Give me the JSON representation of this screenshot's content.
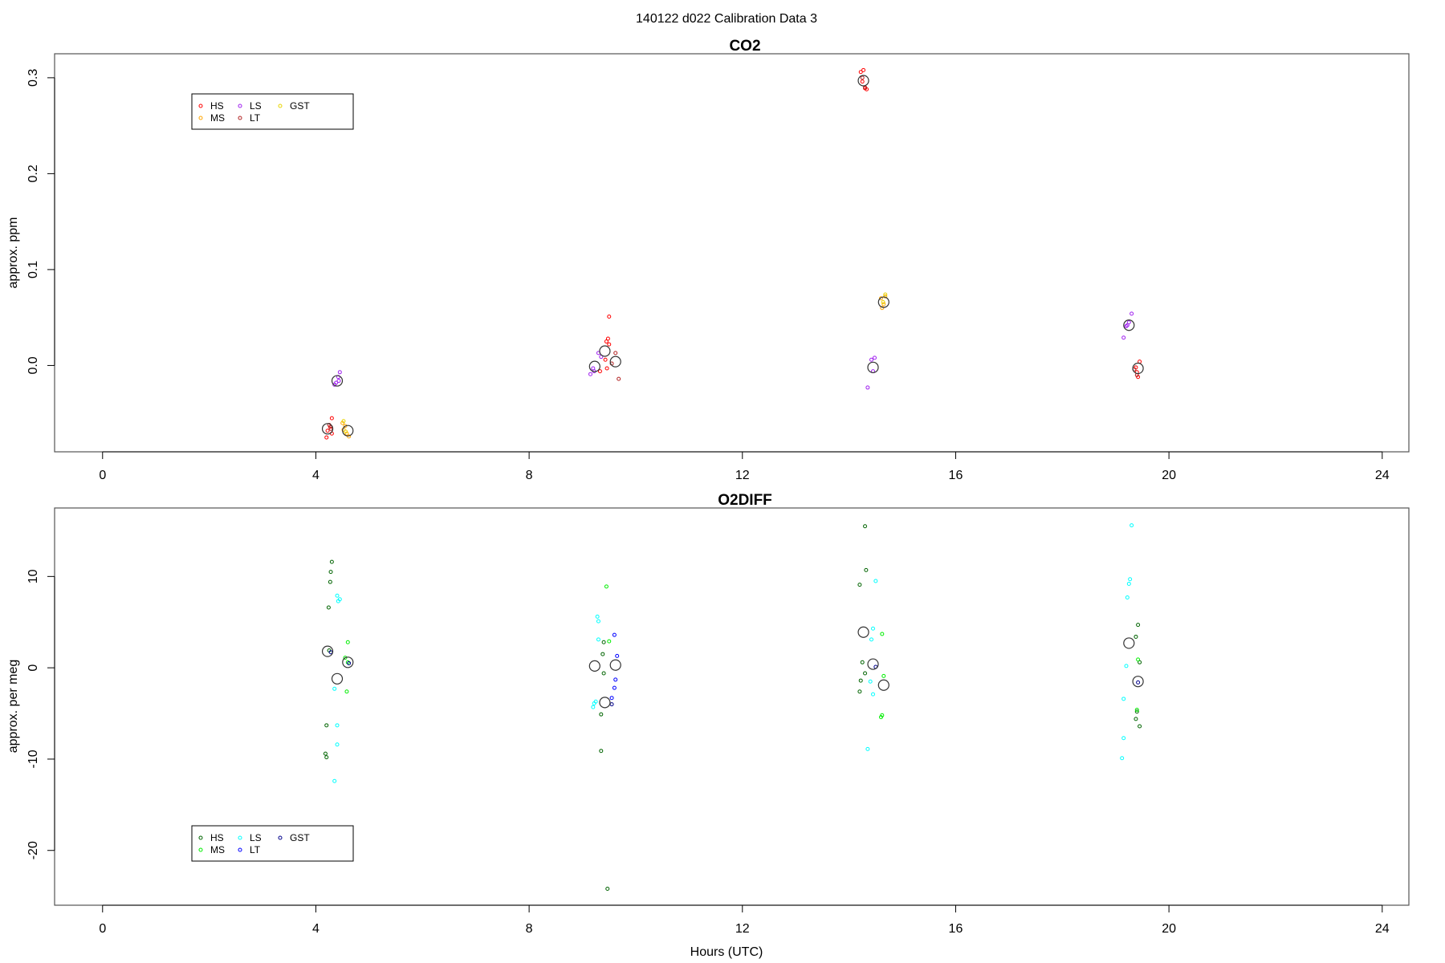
{
  "figure": {
    "title": "140122   d022   Calibration Data 3",
    "xlabel": "Hours (UTC)"
  },
  "chart_data": [
    {
      "type": "scatter",
      "title": "CO2",
      "xlabel": "",
      "ylabel": "approx. ppm",
      "xlim": [
        -0.9,
        24.5
      ],
      "ylim": [
        -0.09,
        0.325
      ],
      "xticks": [
        0,
        4,
        8,
        12,
        16,
        20,
        24
      ],
      "yticks": [
        0.0,
        0.1,
        0.2,
        0.3
      ],
      "ytick_labels": [
        "0.0",
        "0.1",
        "0.2",
        "0.3"
      ],
      "grid": false,
      "legend": {
        "position": "top-left",
        "entries": [
          "HS",
          "MS",
          "LS",
          "LT",
          "GST"
        ]
      },
      "series": [
        {
          "name": "HS",
          "color": "#ff0000",
          "points": [
            [
              4.22,
              -0.068
            ],
            [
              4.27,
              -0.064
            ],
            [
              4.3,
              -0.055
            ],
            [
              4.2,
              -0.075
            ],
            [
              4.3,
              -0.071
            ],
            [
              9.33,
              -0.006
            ],
            [
              9.43,
              0.006
            ],
            [
              9.46,
              -0.003
            ],
            [
              9.48,
              0.028
            ],
            [
              9.5,
              0.022
            ],
            [
              9.45,
              0.025
            ],
            [
              9.5,
              0.051
            ],
            [
              14.22,
              0.306
            ],
            [
              14.27,
              0.308
            ],
            [
              14.3,
              0.289
            ],
            [
              14.33,
              0.288
            ],
            [
              14.25,
              0.296
            ],
            [
              19.38,
              -0.002
            ],
            [
              19.42,
              -0.012
            ],
            [
              19.45,
              0.004
            ],
            [
              19.4,
              -0.007
            ]
          ]
        },
        {
          "name": "MS",
          "color": "#ffa500",
          "points": [
            [
              4.5,
              -0.06
            ],
            [
              4.55,
              -0.063
            ],
            [
              4.58,
              -0.071
            ],
            [
              4.62,
              -0.074
            ],
            [
              4.52,
              -0.067
            ],
            [
              14.6,
              0.07
            ],
            [
              14.65,
              0.064
            ],
            [
              14.62,
              0.06
            ],
            [
              14.68,
              0.072
            ]
          ]
        },
        {
          "name": "LS",
          "color": "#a020f0",
          "points": [
            [
              4.38,
              -0.018
            ],
            [
              4.42,
              -0.012
            ],
            [
              4.45,
              -0.007
            ],
            [
              4.35,
              -0.02
            ],
            [
              4.43,
              -0.016
            ],
            [
              9.15,
              -0.009
            ],
            [
              9.2,
              -0.003
            ],
            [
              9.3,
              0.013
            ],
            [
              9.35,
              0.009
            ],
            [
              9.22,
              -0.006
            ],
            [
              14.35,
              -0.023
            ],
            [
              14.42,
              0.006
            ],
            [
              14.48,
              0.008
            ],
            [
              14.45,
              -0.006
            ],
            [
              19.15,
              0.029
            ],
            [
              19.2,
              0.041
            ],
            [
              19.25,
              0.045
            ],
            [
              19.3,
              0.054
            ],
            [
              19.22,
              0.042
            ]
          ]
        },
        {
          "name": "LT",
          "color": "#b22222",
          "points": [
            [
              4.25,
              -0.062
            ],
            [
              4.28,
              -0.066
            ],
            [
              9.55,
              0.002
            ],
            [
              9.62,
              0.013
            ],
            [
              9.68,
              -0.014
            ],
            [
              14.25,
              0.3
            ],
            [
              14.3,
              0.29
            ],
            [
              19.35,
              -0.004
            ],
            [
              19.4,
              -0.01
            ]
          ]
        },
        {
          "name": "GST",
          "color": "#e8d400",
          "points": [
            [
              4.52,
              -0.058
            ],
            [
              4.56,
              -0.069
            ],
            [
              14.64,
              0.066
            ],
            [
              14.68,
              0.074
            ]
          ]
        },
        {
          "name": "",
          "color": "#333333",
          "points": [
            [
              4.22,
              -0.066
            ],
            [
              4.4,
              -0.016
            ],
            [
              4.6,
              -0.068
            ],
            [
              9.23,
              -0.001
            ],
            [
              9.42,
              0.015
            ],
            [
              9.62,
              0.004
            ],
            [
              14.27,
              0.297
            ],
            [
              14.45,
              -0.002
            ],
            [
              14.65,
              0.066
            ],
            [
              19.25,
              0.042
            ],
            [
              19.42,
              -0.003
            ]
          ]
        }
      ]
    },
    {
      "type": "scatter",
      "title": "O2DIFF",
      "xlabel": "Hours (UTC)",
      "ylabel": "approx. per meg",
      "xlim": [
        -0.9,
        24.5
      ],
      "ylim": [
        -26,
        17.5
      ],
      "xticks": [
        0,
        4,
        8,
        12,
        16,
        20,
        24
      ],
      "yticks": [
        -20,
        -10,
        0,
        10
      ],
      "ytick_labels": [
        "-20",
        "-10",
        "0",
        "10"
      ],
      "grid": false,
      "legend": {
        "position": "bottom-left",
        "entries": [
          "HS",
          "MS",
          "LS",
          "LT",
          "GST"
        ]
      },
      "series": [
        {
          "name": "HS",
          "color": "#006400",
          "points": [
            [
              4.3,
              11.6
            ],
            [
              4.28,
              10.5
            ],
            [
              4.27,
              9.4
            ],
            [
              4.24,
              6.6
            ],
            [
              4.25,
              1.9
            ],
            [
              4.2,
              -6.3
            ],
            [
              4.18,
              -9.4
            ],
            [
              4.2,
              -9.8
            ],
            [
              9.4,
              2.8
            ],
            [
              9.38,
              1.5
            ],
            [
              9.4,
              -0.6
            ],
            [
              9.35,
              -5.1
            ],
            [
              9.35,
              -9.1
            ],
            [
              9.47,
              -24.2
            ],
            [
              14.3,
              15.5
            ],
            [
              14.32,
              10.7
            ],
            [
              14.2,
              9.1
            ],
            [
              14.25,
              0.6
            ],
            [
              14.3,
              -0.6
            ],
            [
              14.22,
              -1.4
            ],
            [
              14.2,
              -2.6
            ],
            [
              19.42,
              4.7
            ],
            [
              19.38,
              3.4
            ],
            [
              19.45,
              0.6
            ],
            [
              19.4,
              -4.8
            ],
            [
              19.38,
              -5.6
            ],
            [
              19.45,
              -6.4
            ]
          ]
        },
        {
          "name": "MS",
          "color": "#00ee00",
          "points": [
            [
              4.6,
              2.8
            ],
            [
              4.55,
              1.1
            ],
            [
              4.6,
              0.6
            ],
            [
              4.58,
              -2.6
            ],
            [
              9.45,
              8.9
            ],
            [
              9.5,
              2.9
            ],
            [
              14.62,
              3.7
            ],
            [
              14.65,
              -0.9
            ],
            [
              14.62,
              -5.2
            ],
            [
              14.6,
              -5.4
            ],
            [
              19.42,
              0.9
            ],
            [
              19.4,
              -4.6
            ]
          ]
        },
        {
          "name": "LS",
          "color": "#00ffff",
          "points": [
            [
              4.4,
              7.9
            ],
            [
              4.42,
              7.3
            ],
            [
              4.45,
              7.5
            ],
            [
              4.35,
              -2.3
            ],
            [
              4.4,
              -6.3
            ],
            [
              4.4,
              -8.4
            ],
            [
              4.35,
              -12.4
            ],
            [
              9.28,
              5.6
            ],
            [
              9.3,
              5.1
            ],
            [
              9.3,
              3.1
            ],
            [
              9.25,
              -3.7
            ],
            [
              9.22,
              -3.9
            ],
            [
              9.2,
              -4.3
            ],
            [
              14.5,
              9.5
            ],
            [
              14.45,
              4.3
            ],
            [
              14.42,
              3.1
            ],
            [
              14.4,
              -1.5
            ],
            [
              14.45,
              -2.9
            ],
            [
              14.35,
              -8.9
            ],
            [
              19.3,
              15.6
            ],
            [
              19.27,
              9.7
            ],
            [
              19.25,
              9.2
            ],
            [
              19.22,
              7.7
            ],
            [
              19.2,
              0.2
            ],
            [
              19.15,
              -3.4
            ],
            [
              19.15,
              -7.7
            ],
            [
              19.12,
              -9.9
            ]
          ]
        },
        {
          "name": "LT",
          "color": "#0000ff",
          "points": [
            [
              9.6,
              3.6
            ],
            [
              9.65,
              1.3
            ],
            [
              9.62,
              -1.3
            ],
            [
              9.6,
              -2.2
            ],
            [
              9.55,
              -3.3
            ]
          ]
        },
        {
          "name": "GST",
          "color": "#00008b",
          "points": [
            [
              4.28,
              1.7
            ],
            [
              4.62,
              0.5
            ],
            [
              9.55,
              -4.0
            ],
            [
              14.5,
              0.1
            ],
            [
              19.42,
              -1.6
            ]
          ]
        },
        {
          "name": "",
          "color": "#333333",
          "points": [
            [
              4.22,
              1.8
            ],
            [
              4.4,
              -1.2
            ],
            [
              4.6,
              0.6
            ],
            [
              9.23,
              0.2
            ],
            [
              9.42,
              -3.8
            ],
            [
              9.62,
              0.3
            ],
            [
              14.27,
              3.9
            ],
            [
              14.45,
              0.4
            ],
            [
              14.65,
              -1.9
            ],
            [
              19.25,
              2.7
            ],
            [
              19.42,
              -1.5
            ]
          ]
        }
      ]
    }
  ]
}
